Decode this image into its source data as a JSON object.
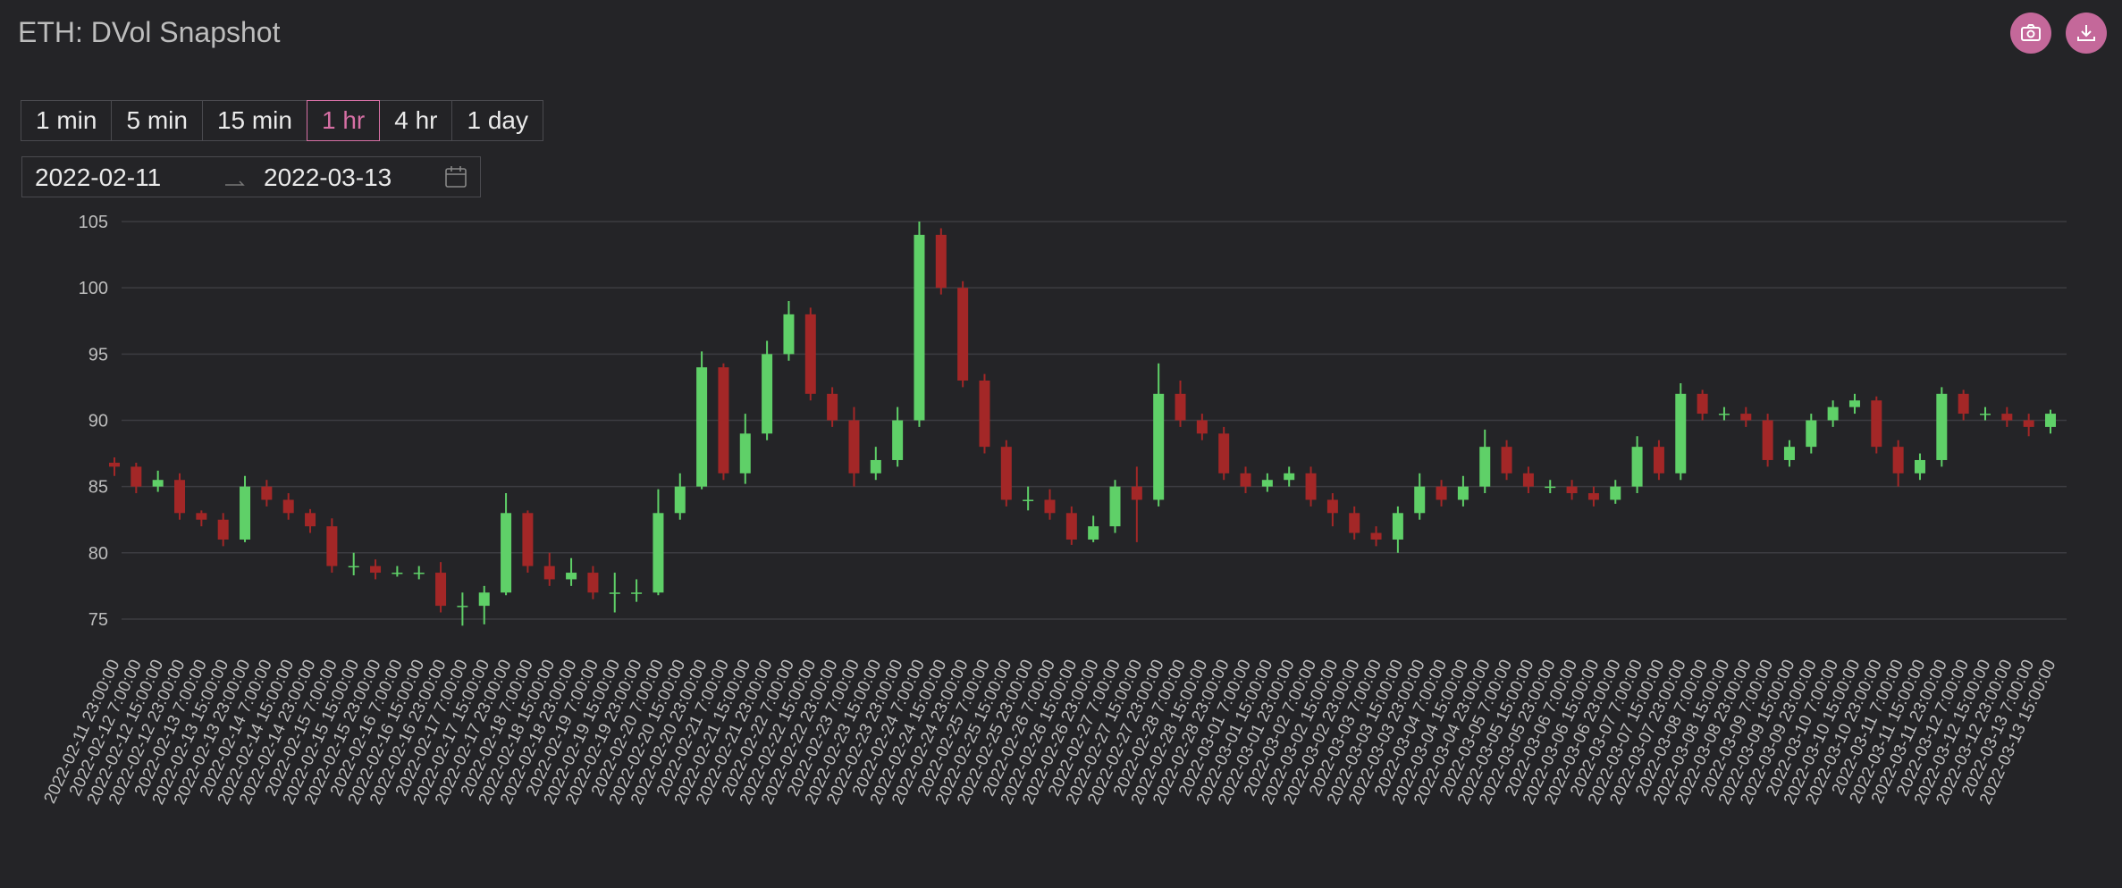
{
  "chart_data": {
    "type": "candlestick",
    "title": "ETH: DVol Snapshot",
    "up_color": "#5fd068",
    "down_color": "#a32727",
    "grid": true,
    "ylim": [
      73,
      106
    ],
    "yticks": [
      75,
      80,
      85,
      90,
      95,
      100,
      105
    ],
    "categories": [
      "2022-02-11 23:00:00",
      "2022-02-12 7:00:00",
      "2022-02-12 15:00:00",
      "2022-02-12 23:00:00",
      "2022-02-13 7:00:00",
      "2022-02-13 15:00:00",
      "2022-02-13 23:00:00",
      "2022-02-14 7:00:00",
      "2022-02-14 15:00:00",
      "2022-02-14 23:00:00",
      "2022-02-15 7:00:00",
      "2022-02-15 15:00:00",
      "2022-02-15 23:00:00",
      "2022-02-16 7:00:00",
      "2022-02-16 15:00:00",
      "2022-02-16 23:00:00",
      "2022-02-17 7:00:00",
      "2022-02-17 15:00:00",
      "2022-02-17 23:00:00",
      "2022-02-18 7:00:00",
      "2022-02-18 15:00:00",
      "2022-02-18 23:00:00",
      "2022-02-19 7:00:00",
      "2022-02-19 15:00:00",
      "2022-02-19 23:00:00",
      "2022-02-20 7:00:00",
      "2022-02-20 15:00:00",
      "2022-02-20 23:00:00",
      "2022-02-21 7:00:00",
      "2022-02-21 15:00:00",
      "2022-02-21 23:00:00",
      "2022-02-22 7:00:00",
      "2022-02-22 15:00:00",
      "2022-02-22 23:00:00",
      "2022-02-23 7:00:00",
      "2022-02-23 15:00:00",
      "2022-02-23 23:00:00",
      "2022-02-24 7:00:00",
      "2022-02-24 15:00:00",
      "2022-02-24 23:00:00",
      "2022-02-25 7:00:00",
      "2022-02-25 15:00:00",
      "2022-02-25 23:00:00",
      "2022-02-26 7:00:00",
      "2022-02-26 15:00:00",
      "2022-02-26 23:00:00",
      "2022-02-27 7:00:00",
      "2022-02-27 15:00:00",
      "2022-02-27 23:00:00",
      "2022-02-28 7:00:00",
      "2022-02-28 15:00:00",
      "2022-02-28 23:00:00",
      "2022-03-01 7:00:00",
      "2022-03-01 15:00:00",
      "2022-03-01 23:00:00",
      "2022-03-02 7:00:00",
      "2022-03-02 15:00:00",
      "2022-03-02 23:00:00",
      "2022-03-03 7:00:00",
      "2022-03-03 15:00:00",
      "2022-03-03 23:00:00",
      "2022-03-04 7:00:00",
      "2022-03-04 15:00:00",
      "2022-03-04 23:00:00",
      "2022-03-05 7:00:00",
      "2022-03-05 15:00:00",
      "2022-03-05 23:00:00",
      "2022-03-06 7:00:00",
      "2022-03-06 15:00:00",
      "2022-03-06 23:00:00",
      "2022-03-07 7:00:00",
      "2022-03-07 15:00:00",
      "2022-03-07 23:00:00",
      "2022-03-08 7:00:00",
      "2022-03-08 15:00:00",
      "2022-03-08 23:00:00",
      "2022-03-09 7:00:00",
      "2022-03-09 15:00:00",
      "2022-03-09 23:00:00",
      "2022-03-10 7:00:00",
      "2022-03-10 15:00:00",
      "2022-03-10 23:00:00",
      "2022-03-11 7:00:00",
      "2022-03-11 15:00:00",
      "2022-03-11 23:00:00",
      "2022-03-12 7:00:00",
      "2022-03-12 15:00:00",
      "2022-03-12 23:00:00",
      "2022-03-13 7:00:00",
      "2022-03-13 15:00:00"
    ],
    "open": [
      86.8,
      86.5,
      85,
      85.5,
      83,
      82.5,
      81,
      85,
      84,
      83,
      82,
      79,
      79,
      78.5,
      78.5,
      78.5,
      76,
      76,
      77,
      83,
      79,
      78,
      78.5,
      77,
      77,
      77,
      83,
      85,
      94,
      86,
      89,
      95,
      98,
      92,
      90,
      86,
      87,
      90,
      104,
      100,
      93,
      88,
      84,
      84,
      83,
      81,
      82,
      85,
      84,
      92,
      90,
      89,
      86,
      85,
      85.5,
      86,
      84,
      83,
      81.5,
      81,
      83,
      85,
      84,
      85,
      88,
      86,
      85,
      85,
      84.5,
      84,
      85,
      88,
      86,
      92,
      90.5,
      90.5,
      90,
      87,
      88,
      90,
      91,
      91.5,
      88,
      86,
      87,
      92,
      90.5,
      90.5,
      90,
      89.5
    ],
    "high": [
      87.2,
      86.8,
      86.2,
      86,
      83.2,
      83,
      85.8,
      85.5,
      84.5,
      83.3,
      82.6,
      80,
      79.5,
      79,
      79,
      79.3,
      77,
      77.5,
      84.5,
      83.2,
      80,
      79.6,
      79,
      78.5,
      78,
      84.8,
      86,
      95.2,
      94.3,
      90.5,
      96,
      99,
      98.5,
      92.5,
      91,
      88,
      91,
      105,
      104.5,
      100.5,
      93.5,
      88.5,
      85,
      84.8,
      83.5,
      82.8,
      85.5,
      86.5,
      94.3,
      93,
      90.5,
      89.5,
      86.5,
      86,
      86.5,
      86.5,
      84.5,
      83.5,
      82,
      83.5,
      86,
      85.5,
      85.8,
      89.3,
      88.5,
      86.5,
      85.5,
      85.5,
      85,
      85.5,
      88.8,
      88.5,
      92.8,
      92.3,
      91,
      91,
      90.5,
      88.5,
      90.5,
      91.5,
      92,
      91.8,
      88.5,
      87.5,
      92.5,
      92.3,
      91,
      91,
      90.5,
      90.8
    ],
    "low": [
      85.8,
      84.5,
      84.6,
      82.5,
      82,
      80.5,
      80.8,
      83.5,
      82.5,
      81.5,
      78.5,
      78.3,
      78,
      78.2,
      78,
      75.5,
      74.5,
      74.6,
      76.8,
      78.5,
      77.5,
      77.5,
      76.5,
      75.5,
      76.3,
      76.8,
      82.5,
      84.8,
      85.5,
      85.2,
      88.5,
      94.5,
      91.5,
      89.5,
      85,
      85.5,
      86.5,
      89.5,
      99.5,
      92.5,
      87.5,
      83.5,
      83.2,
      82.5,
      80.6,
      80.8,
      81.5,
      80.8,
      83.5,
      89.5,
      88.5,
      85.5,
      84.5,
      84.6,
      85,
      83.5,
      82,
      81,
      80.5,
      80,
      82.5,
      83.5,
      83.5,
      84.5,
      85.5,
      84.5,
      84.5,
      84,
      83.5,
      83.7,
      84.5,
      85.5,
      85.5,
      90,
      90,
      89.5,
      86.5,
      86.5,
      87.5,
      89.5,
      90.5,
      87.5,
      85,
      85.5,
      86.5,
      90,
      90,
      89.5,
      88.8,
      89
    ],
    "close": [
      86.5,
      85,
      85.5,
      83,
      82.5,
      81,
      85,
      84,
      83,
      82,
      79,
      79,
      78.5,
      78.5,
      78.5,
      76,
      76,
      77,
      83,
      79,
      78,
      78.5,
      77,
      77,
      77,
      83,
      85,
      94,
      86,
      89,
      95,
      98,
      92,
      90,
      86,
      87,
      90,
      104,
      100,
      93,
      88,
      84,
      84,
      83,
      81,
      82,
      85,
      84,
      92,
      90,
      89,
      86,
      85,
      85.5,
      86,
      84,
      83,
      81.5,
      81,
      83,
      85,
      84,
      85,
      88,
      86,
      85,
      85,
      84.5,
      84,
      85,
      88,
      86,
      92,
      90.5,
      90.5,
      90,
      87,
      88,
      90,
      91,
      91.5,
      88,
      86,
      87,
      92,
      90.5,
      90.5,
      90,
      89.5,
      90.5
    ]
  },
  "controls": {
    "intervals": [
      "1 min",
      "5 min",
      "15 min",
      "1 hr",
      "4 hr",
      "1 day"
    ],
    "active_interval": 3,
    "date_from": "2022-02-11",
    "date_to": "2022-03-13"
  }
}
